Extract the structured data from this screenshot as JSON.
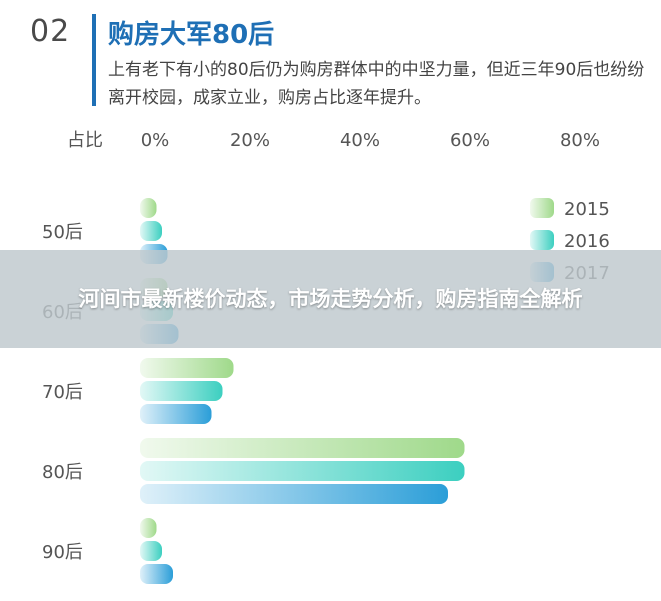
{
  "header": {
    "number": "02",
    "title": "购房大军80后",
    "description": "上有老下有小的80后仍为购房群体中的中坚力量，但近三年90后也纷纷离开校园，成家立业，购房占比逐年提升。"
  },
  "overlay": {
    "headline": "河间市最新楼价动态，市场走势分析，购房指南全解析"
  },
  "colors": {
    "accent": "#1e6fb5",
    "series_2015": "#9fd98a",
    "series_2016": "#3ccfc0",
    "series_2017": "#2b9ed8"
  },
  "chart_data": {
    "type": "bar",
    "orientation": "horizontal",
    "axis_label": "占比",
    "x_ticks": [
      "0%",
      "20%",
      "40%",
      "60%",
      "80%"
    ],
    "xlim": [
      0,
      80
    ],
    "grid": false,
    "legend_position": "top-right",
    "categories": [
      "50后",
      "60后",
      "70后",
      "80后",
      "90后"
    ],
    "series": [
      {
        "name": "2015",
        "values": [
          3,
          5,
          17,
          59,
          3
        ]
      },
      {
        "name": "2016",
        "values": [
          4,
          6,
          15,
          59,
          4
        ]
      },
      {
        "name": "2017",
        "values": [
          5,
          7,
          13,
          56,
          6
        ]
      }
    ]
  }
}
